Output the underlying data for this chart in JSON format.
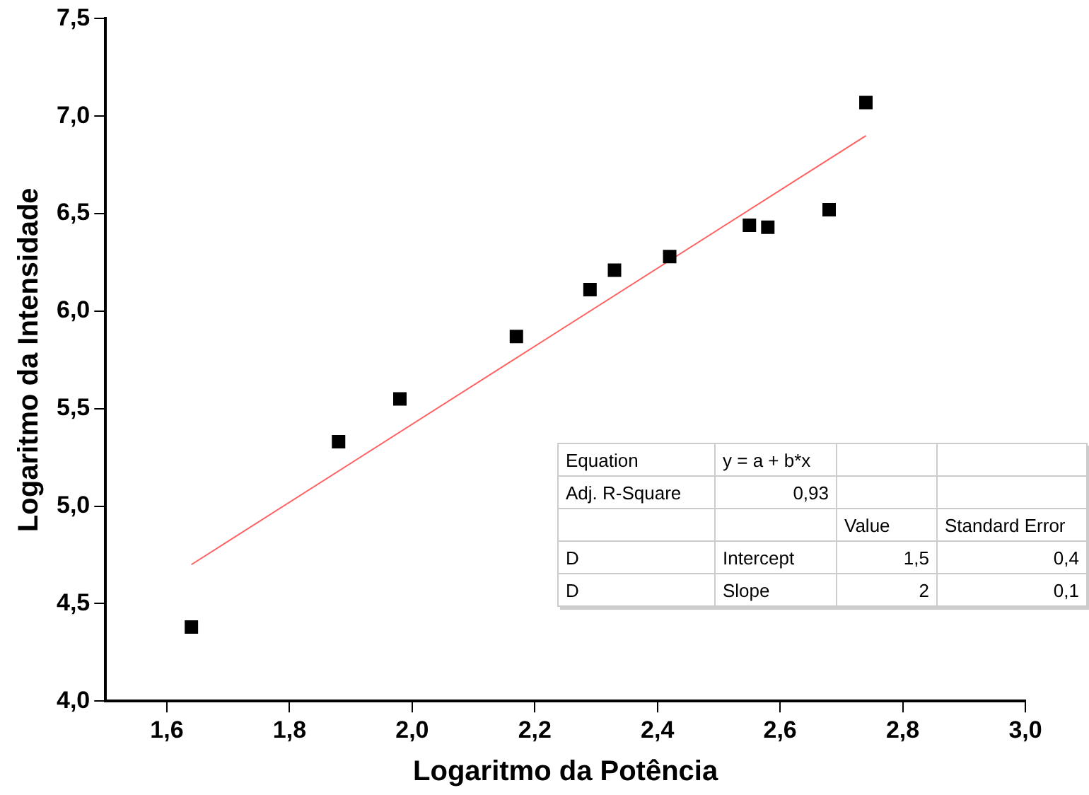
{
  "chart_data": {
    "type": "scatter",
    "xlabel": "Logaritmo da Potência",
    "ylabel": "Logaritmo da Intensidade",
    "xlim": [
      1.5,
      3.0
    ],
    "xticks": [
      {
        "value": 1.6,
        "label": "1,6"
      },
      {
        "value": 1.8,
        "label": "1,8"
      },
      {
        "value": 2.0,
        "label": "2,0"
      },
      {
        "value": 2.2,
        "label": "2,2"
      },
      {
        "value": 2.4,
        "label": "2,4"
      },
      {
        "value": 2.6,
        "label": "2,6"
      },
      {
        "value": 2.8,
        "label": "2,8"
      },
      {
        "value": 3.0,
        "label": "3,0"
      }
    ],
    "ylim": [
      4.0,
      7.5
    ],
    "yticks": [
      {
        "value": 4.0,
        "label": "4,0"
      },
      {
        "value": 4.5,
        "label": "4,5"
      },
      {
        "value": 5.0,
        "label": "5,0"
      },
      {
        "value": 5.5,
        "label": "5,5"
      },
      {
        "value": 6.0,
        "label": "6,0"
      },
      {
        "value": 6.5,
        "label": "6,5"
      },
      {
        "value": 7.0,
        "label": "7,0"
      },
      {
        "value": 7.5,
        "label": "7,5"
      }
    ],
    "grid": false,
    "legend": false,
    "marker": "square",
    "series": [
      {
        "type": "scatter",
        "color": "#000000",
        "x": [
          1.64,
          1.88,
          1.98,
          2.17,
          2.29,
          2.33,
          2.42,
          2.55,
          2.58,
          2.68,
          2.74
        ],
        "values": [
          4.38,
          5.33,
          5.55,
          5.87,
          6.11,
          6.21,
          6.28,
          6.44,
          6.43,
          6.52,
          7.07
        ]
      },
      {
        "type": "line",
        "color": "#ff6060",
        "marker": "none",
        "x": [
          1.64,
          2.74
        ],
        "values": [
          4.7,
          6.9
        ]
      }
    ],
    "annotations": [
      "Equation",
      "y = a + b*x",
      "Adj. R-Square",
      "0,93",
      "Value",
      "Standard Error",
      "D",
      "Intercept",
      "1,5",
      "0,4",
      "D",
      "Slope",
      "2",
      "0,1"
    ]
  }
}
